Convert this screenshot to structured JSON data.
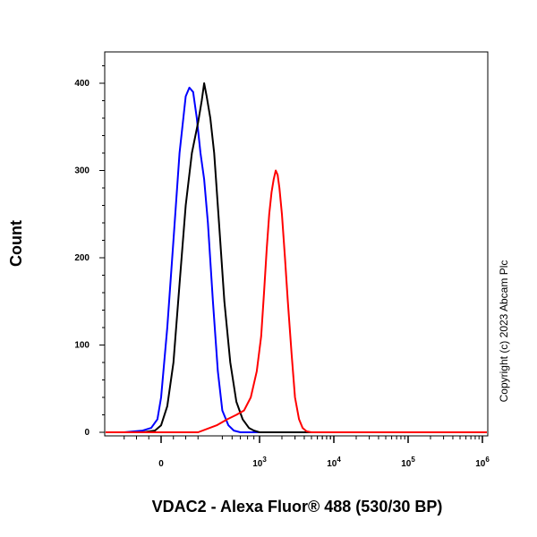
{
  "chart_data": {
    "type": "line",
    "title": "",
    "xlabel": "VDAC2 - Alexa Fluor® 488 (530/30 BP)",
    "ylabel": "Count",
    "x_scale": "biexponential",
    "xlim": [
      -400,
      1000000
    ],
    "ylim": [
      0,
      440
    ],
    "y_ticks": [
      0,
      100,
      200,
      300,
      400
    ],
    "x_tick_labels": [
      {
        "value": 0,
        "base": "0",
        "exp": ""
      },
      {
        "value": 1000,
        "base": "10",
        "exp": "3"
      },
      {
        "value": 10000,
        "base": "10",
        "exp": "4"
      },
      {
        "value": 100000,
        "base": "10",
        "exp": "5"
      },
      {
        "value": 1000000,
        "base": "10",
        "exp": "6"
      }
    ],
    "grid": false,
    "series": [
      {
        "color": "#0000ff",
        "x": [
          -300,
          -150,
          -80,
          -30,
          0,
          50,
          100,
          150,
          200,
          230,
          260,
          290,
          320,
          350,
          380,
          420,
          460,
          500,
          560,
          620,
          700
        ],
        "y": [
          0,
          2,
          5,
          15,
          40,
          120,
          220,
          320,
          385,
          395,
          390,
          360,
          320,
          290,
          240,
          150,
          70,
          25,
          8,
          2,
          0
        ]
      },
      {
        "color": "#000000",
        "x": [
          -150,
          -50,
          0,
          50,
          100,
          150,
          200,
          250,
          300,
          330,
          350,
          370,
          400,
          430,
          470,
          520,
          580,
          650,
          730,
          820,
          900,
          1000
        ],
        "y": [
          0,
          2,
          8,
          30,
          80,
          170,
          260,
          320,
          355,
          380,
          400,
          385,
          360,
          320,
          240,
          150,
          80,
          35,
          15,
          5,
          2,
          0
        ]
      },
      {
        "color": "#ff0000",
        "x": [
          300,
          450,
          550,
          650,
          750,
          850,
          950,
          1050,
          1150,
          1250,
          1350,
          1450,
          1550,
          1650,
          1750,
          1850,
          2000,
          2200,
          2400,
          2700,
          3000,
          3400,
          3800,
          4300,
          5000
        ],
        "y": [
          0,
          8,
          15,
          20,
          25,
          40,
          70,
          110,
          160,
          210,
          250,
          275,
          290,
          300,
          295,
          280,
          250,
          200,
          150,
          90,
          40,
          15,
          5,
          1,
          0
        ]
      }
    ]
  },
  "copyright": "Copyright (c) 2023 Abcam Plc"
}
